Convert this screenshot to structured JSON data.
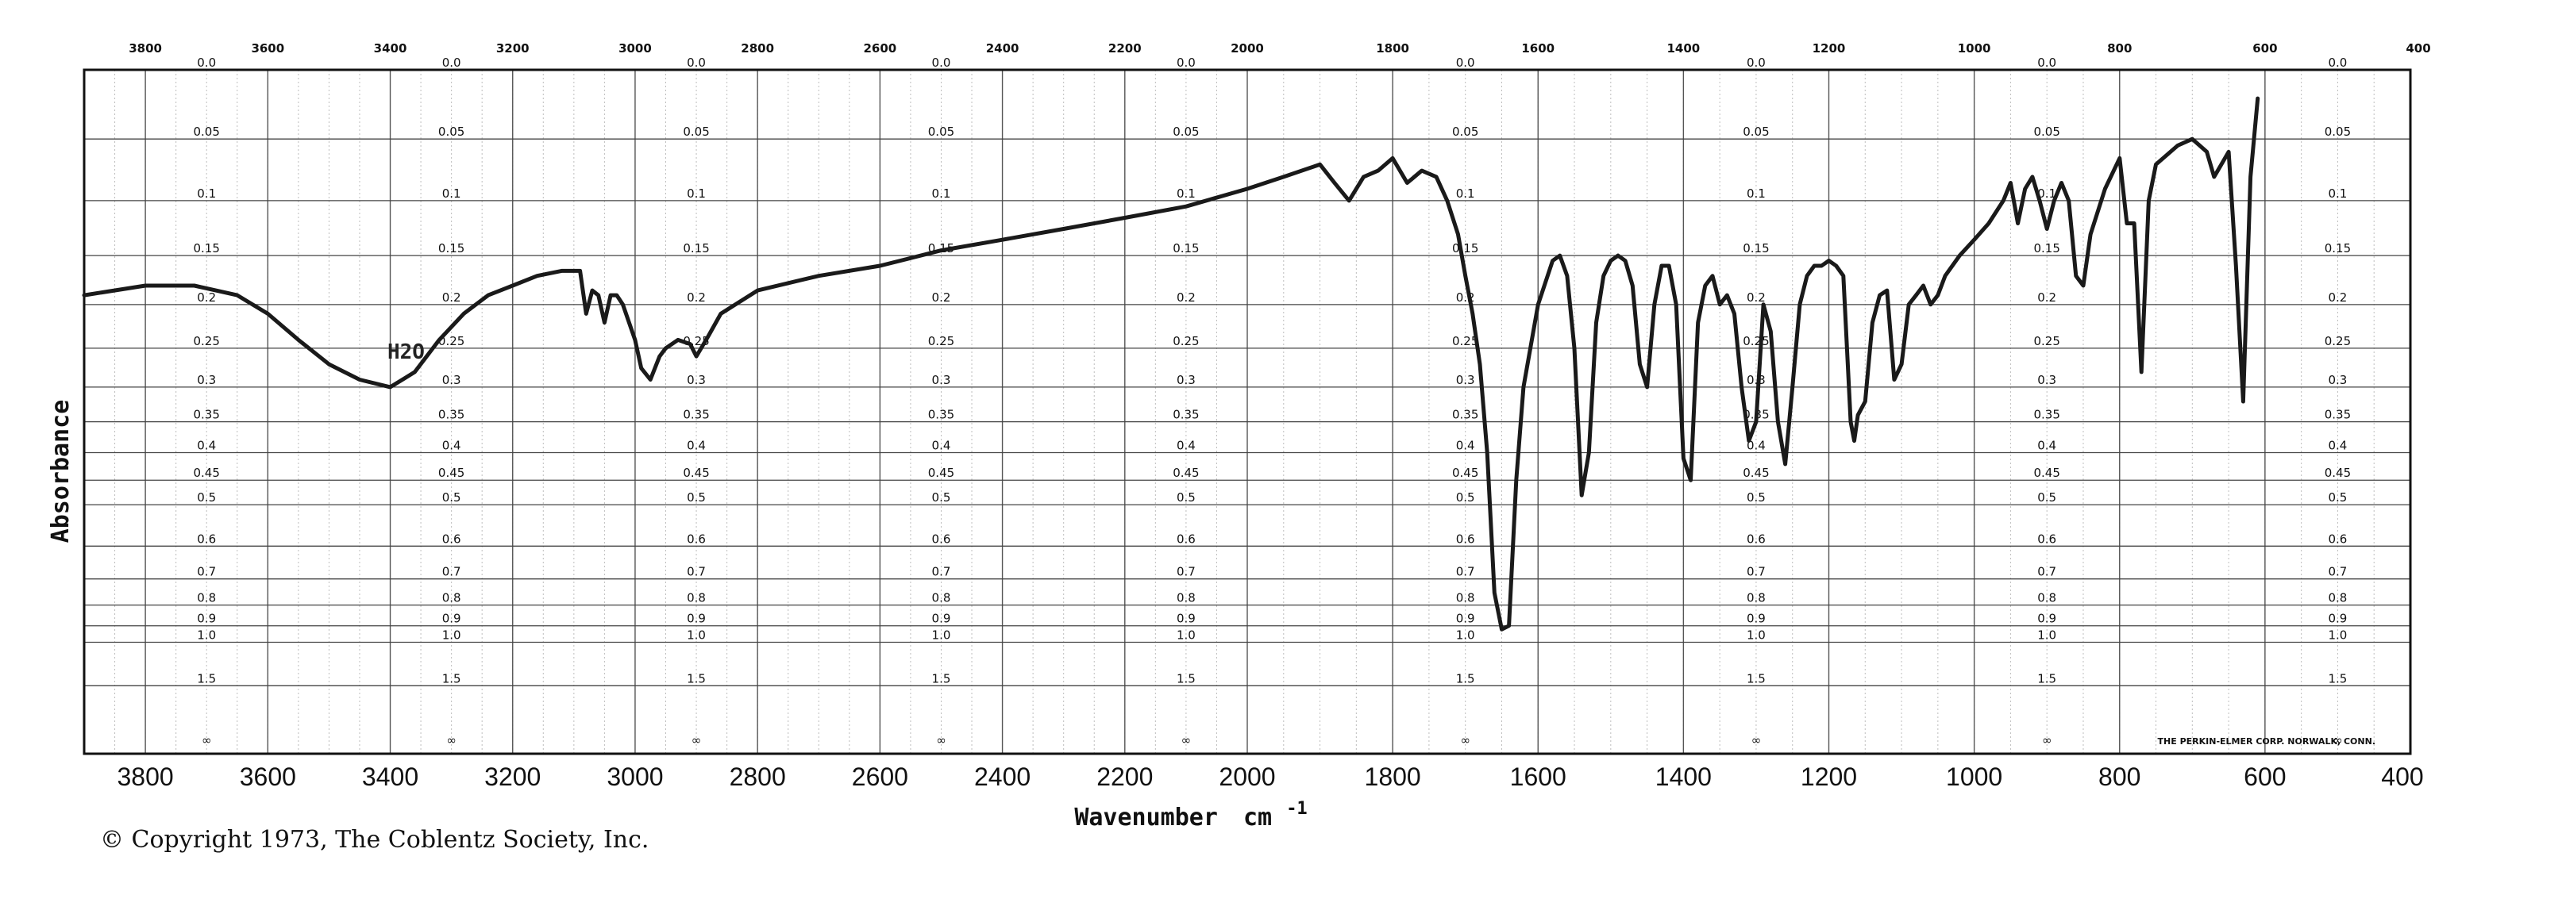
{
  "chart_data": {
    "type": "line",
    "xlabel": "Wavenumber",
    "xlabel_unit": "cm",
    "xlabel_superscript": "-1",
    "ylabel": "Absorbance",
    "x_range": [
      3900,
      400
    ],
    "y_range": [
      0.0,
      2.0
    ],
    "grid": true,
    "x_ticks_bottom": [
      "3800",
      "3600",
      "3400",
      "3200",
      "3000",
      "2800",
      "2600",
      "2400",
      "2200",
      "2000",
      "1800",
      "1600",
      "1400",
      "1200",
      "1000",
      "800",
      "600",
      "400"
    ],
    "x_ticks_top": [
      "3800",
      "3600",
      "3400",
      "3200",
      "3000",
      "2800",
      "2600",
      "2400",
      "2200",
      "2000",
      "1800",
      "1600",
      "1400",
      "1200",
      "1000",
      "800",
      "600",
      "400"
    ],
    "absorbance_ticks": [
      "0.0",
      "0.05",
      "0.1",
      "0.15",
      "0.2",
      "0.25",
      "0.3",
      "0.35",
      "0.4",
      "0.45",
      "0.5",
      "0.6",
      "0.7",
      "0.8",
      "0.9",
      "1.0",
      "1.5",
      "∞"
    ],
    "annotation": "H2O",
    "copyright": "© Copyright 1973, The Coblentz Society, Inc.",
    "maker_note": "THE PERKIN-ELMER CORP. NORWALK, CONN.",
    "series": [
      {
        "line_color": "#1a1a1a",
        "points": [
          [
            3900,
            0.19
          ],
          [
            3800,
            0.18
          ],
          [
            3720,
            0.18
          ],
          [
            3650,
            0.19
          ],
          [
            3600,
            0.21
          ],
          [
            3550,
            0.24
          ],
          [
            3500,
            0.27
          ],
          [
            3450,
            0.29
          ],
          [
            3400,
            0.3
          ],
          [
            3360,
            0.28
          ],
          [
            3320,
            0.24
          ],
          [
            3280,
            0.21
          ],
          [
            3240,
            0.19
          ],
          [
            3200,
            0.18
          ],
          [
            3160,
            0.17
          ],
          [
            3120,
            0.165
          ],
          [
            3090,
            0.165
          ],
          [
            3080,
            0.21
          ],
          [
            3070,
            0.185
          ],
          [
            3060,
            0.19
          ],
          [
            3050,
            0.22
          ],
          [
            3040,
            0.19
          ],
          [
            3030,
            0.19
          ],
          [
            3020,
            0.2
          ],
          [
            3000,
            0.24
          ],
          [
            2990,
            0.275
          ],
          [
            2975,
            0.29
          ],
          [
            2960,
            0.26
          ],
          [
            2950,
            0.25
          ],
          [
            2930,
            0.24
          ],
          [
            2910,
            0.245
          ],
          [
            2900,
            0.26
          ],
          [
            2880,
            0.235
          ],
          [
            2860,
            0.21
          ],
          [
            2800,
            0.185
          ],
          [
            2700,
            0.17
          ],
          [
            2600,
            0.16
          ],
          [
            2500,
            0.145
          ],
          [
            2400,
            0.135
          ],
          [
            2300,
            0.125
          ],
          [
            2200,
            0.115
          ],
          [
            2100,
            0.105
          ],
          [
            2000,
            0.09
          ],
          [
            1950,
            0.08
          ],
          [
            1900,
            0.07
          ],
          [
            1880,
            0.085
          ],
          [
            1860,
            0.1
          ],
          [
            1840,
            0.08
          ],
          [
            1820,
            0.075
          ],
          [
            1800,
            0.065
          ],
          [
            1780,
            0.085
          ],
          [
            1760,
            0.075
          ],
          [
            1740,
            0.08
          ],
          [
            1725,
            0.1
          ],
          [
            1710,
            0.13
          ],
          [
            1700,
            0.17
          ],
          [
            1690,
            0.21
          ],
          [
            1680,
            0.27
          ],
          [
            1670,
            0.4
          ],
          [
            1660,
            0.75
          ],
          [
            1650,
            0.92
          ],
          [
            1640,
            0.9
          ],
          [
            1630,
            0.45
          ],
          [
            1620,
            0.3
          ],
          [
            1600,
            0.2
          ],
          [
            1580,
            0.155
          ],
          [
            1570,
            0.15
          ],
          [
            1560,
            0.17
          ],
          [
            1550,
            0.25
          ],
          [
            1540,
            0.48
          ],
          [
            1530,
            0.4
          ],
          [
            1520,
            0.22
          ],
          [
            1510,
            0.17
          ],
          [
            1500,
            0.155
          ],
          [
            1490,
            0.15
          ],
          [
            1480,
            0.155
          ],
          [
            1470,
            0.18
          ],
          [
            1460,
            0.27
          ],
          [
            1450,
            0.3
          ],
          [
            1440,
            0.2
          ],
          [
            1430,
            0.16
          ],
          [
            1420,
            0.16
          ],
          [
            1410,
            0.2
          ],
          [
            1400,
            0.41
          ],
          [
            1390,
            0.45
          ],
          [
            1380,
            0.22
          ],
          [
            1370,
            0.18
          ],
          [
            1360,
            0.17
          ],
          [
            1350,
            0.2
          ],
          [
            1340,
            0.19
          ],
          [
            1330,
            0.21
          ],
          [
            1320,
            0.3
          ],
          [
            1310,
            0.38
          ],
          [
            1300,
            0.35
          ],
          [
            1290,
            0.2
          ],
          [
            1280,
            0.23
          ],
          [
            1270,
            0.35
          ],
          [
            1260,
            0.42
          ],
          [
            1250,
            0.3
          ],
          [
            1240,
            0.2
          ],
          [
            1230,
            0.17
          ],
          [
            1220,
            0.16
          ],
          [
            1210,
            0.16
          ],
          [
            1200,
            0.155
          ],
          [
            1190,
            0.16
          ],
          [
            1180,
            0.17
          ],
          [
            1170,
            0.35
          ],
          [
            1165,
            0.38
          ],
          [
            1160,
            0.34
          ],
          [
            1150,
            0.32
          ],
          [
            1140,
            0.22
          ],
          [
            1130,
            0.19
          ],
          [
            1120,
            0.185
          ],
          [
            1110,
            0.29
          ],
          [
            1100,
            0.27
          ],
          [
            1090,
            0.2
          ],
          [
            1080,
            0.19
          ],
          [
            1070,
            0.18
          ],
          [
            1060,
            0.2
          ],
          [
            1050,
            0.19
          ],
          [
            1040,
            0.17
          ],
          [
            1020,
            0.15
          ],
          [
            1000,
            0.135
          ],
          [
            980,
            0.12
          ],
          [
            960,
            0.1
          ],
          [
            950,
            0.085
          ],
          [
            940,
            0.12
          ],
          [
            930,
            0.09
          ],
          [
            920,
            0.08
          ],
          [
            910,
            0.1
          ],
          [
            900,
            0.125
          ],
          [
            890,
            0.1
          ],
          [
            880,
            0.085
          ],
          [
            870,
            0.1
          ],
          [
            860,
            0.17
          ],
          [
            850,
            0.18
          ],
          [
            840,
            0.13
          ],
          [
            820,
            0.09
          ],
          [
            800,
            0.065
          ],
          [
            790,
            0.12
          ],
          [
            780,
            0.12
          ],
          [
            770,
            0.28
          ],
          [
            760,
            0.1
          ],
          [
            750,
            0.07
          ],
          [
            720,
            0.055
          ],
          [
            700,
            0.05
          ],
          [
            680,
            0.06
          ],
          [
            670,
            0.08
          ],
          [
            660,
            0.07
          ],
          [
            650,
            0.06
          ],
          [
            640,
            0.16
          ],
          [
            630,
            0.32
          ],
          [
            620,
            0.08
          ],
          [
            610,
            0.02
          ]
        ]
      }
    ]
  }
}
